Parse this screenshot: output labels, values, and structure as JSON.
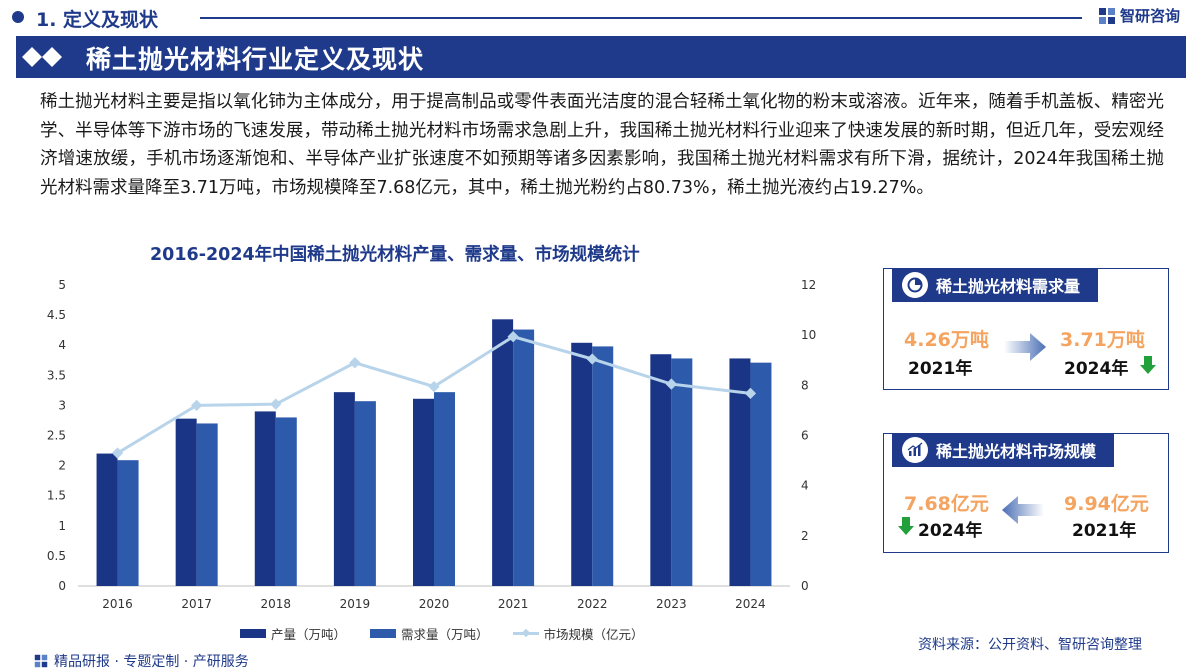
{
  "header": {
    "section_title": "1. 定义及现状",
    "brand": "智研咨询"
  },
  "banner": {
    "title": "稀土抛光材料行业定义及现状"
  },
  "paragraph": "稀土抛光材料主要是指以氧化铈为主体成分，用于提高制品或零件表面光洁度的混合轻稀土氧化物的粉末或溶液。近年来，随着手机盖板、精密光学、半导体等下游市场的飞速发展，带动稀土抛光材料市场需求急剧上升，我国稀土抛光材料行业迎来了快速发展的新时期，但近几年，受宏观经济增速放缓，手机市场逐渐饱和、半导体产业扩张速度不如预期等诸多因素影响，我国稀土抛光材料需求有所下滑，据统计，2024年我国稀土抛光材料需求量降至3.71万吨，市场规模降至7.68亿元，其中，稀土抛光粉约占80.73%，稀土抛光液约占19.27%。",
  "chart_data": {
    "type": "bar",
    "title": "2016-2024年中国稀土抛光材料产量、需求量、市场规模统计",
    "categories": [
      "2016",
      "2017",
      "2018",
      "2019",
      "2020",
      "2021",
      "2022",
      "2023",
      "2024"
    ],
    "series": [
      {
        "name": "产量（万吨）",
        "type": "bar",
        "axis": "left",
        "color": "#1a3586",
        "values": [
          2.2,
          2.78,
          2.9,
          3.22,
          3.11,
          4.43,
          4.04,
          3.85,
          3.78
        ]
      },
      {
        "name": "需求量（万吨）",
        "type": "bar",
        "axis": "left",
        "color": "#2e5aac",
        "values": [
          2.09,
          2.7,
          2.8,
          3.07,
          3.22,
          4.26,
          3.98,
          3.78,
          3.71
        ]
      },
      {
        "name": "市场规模（亿元）",
        "type": "line",
        "axis": "right",
        "color": "#b8d4ea",
        "values": [
          5.3,
          7.2,
          7.25,
          8.9,
          7.95,
          9.94,
          9.05,
          8.05,
          7.68
        ]
      }
    ],
    "y_left": {
      "min": 0,
      "max": 5,
      "step": 0.5,
      "ticks": [
        "0",
        "0.5",
        "1",
        "1.5",
        "2",
        "2.5",
        "3",
        "3.5",
        "4",
        "4.5",
        "5"
      ]
    },
    "y_right": {
      "min": 0,
      "max": 12,
      "step": 2,
      "ticks": [
        "0",
        "2",
        "4",
        "6",
        "8",
        "10",
        "12"
      ]
    },
    "grid": false,
    "legend_position": "bottom"
  },
  "cards": {
    "demand": {
      "title": "稀土抛光材料需求量",
      "from_value": "4.26万吨",
      "from_year": "2021年",
      "to_value": "3.71万吨",
      "to_year": "2024年",
      "icon": "pie-chart-icon"
    },
    "market": {
      "title": "稀土抛光材料市场规模",
      "from_value": "9.94亿元",
      "from_year": "2021年",
      "to_value": "7.68亿元",
      "to_year": "2024年",
      "icon": "trend-chart-icon"
    }
  },
  "footer": {
    "left": "精品研报 · 专题定制 · 产研服务",
    "right": "资料来源：公开资料、智研咨询整理"
  },
  "colors": {
    "primary": "#1f3a8a",
    "accent": "#f4a460",
    "down": "#22a03c"
  }
}
